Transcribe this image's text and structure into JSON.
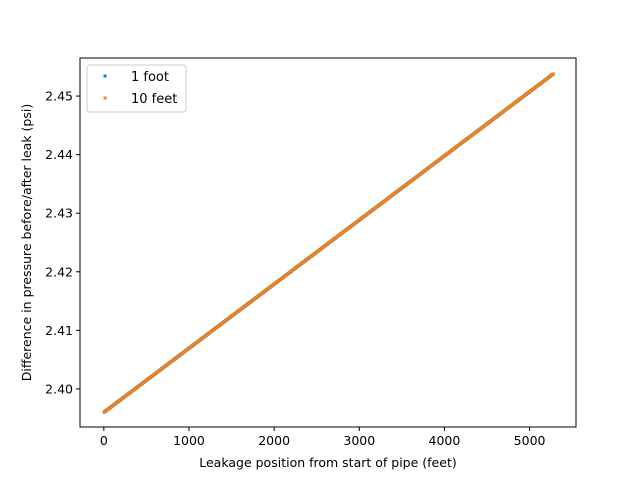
{
  "chart_data": {
    "type": "scatter",
    "title": "",
    "xlabel": "Leakage position from start of pipe (feet)",
    "ylabel": "Difference in pressure before/after leak (psi)",
    "xlim": [
      -280,
      5545
    ],
    "ylim": [
      2.3935,
      2.4565
    ],
    "xticks": [
      0,
      1000,
      2000,
      3000,
      4000,
      5000
    ],
    "xtick_labels": [
      "0",
      "1000",
      "2000",
      "3000",
      "4000",
      "5000"
    ],
    "yticks": [
      2.4,
      2.41,
      2.42,
      2.43,
      2.44,
      2.45
    ],
    "ytick_labels": [
      "2.40",
      "2.41",
      "2.42",
      "2.43",
      "2.44",
      "2.45"
    ],
    "grid": false,
    "legend_position": "top-left",
    "series": [
      {
        "name": "1 foot",
        "color": "#1f77b4",
        "x_start": 0,
        "x_end": 5280,
        "x_step": 1,
        "y_start": 2.396,
        "y_end": 2.4538
      },
      {
        "name": "10 feet",
        "color": "#ff7f0e",
        "x_start": 0,
        "x_end": 5280,
        "x_step": 10,
        "y_start": 2.396,
        "y_end": 2.4538
      }
    ]
  }
}
